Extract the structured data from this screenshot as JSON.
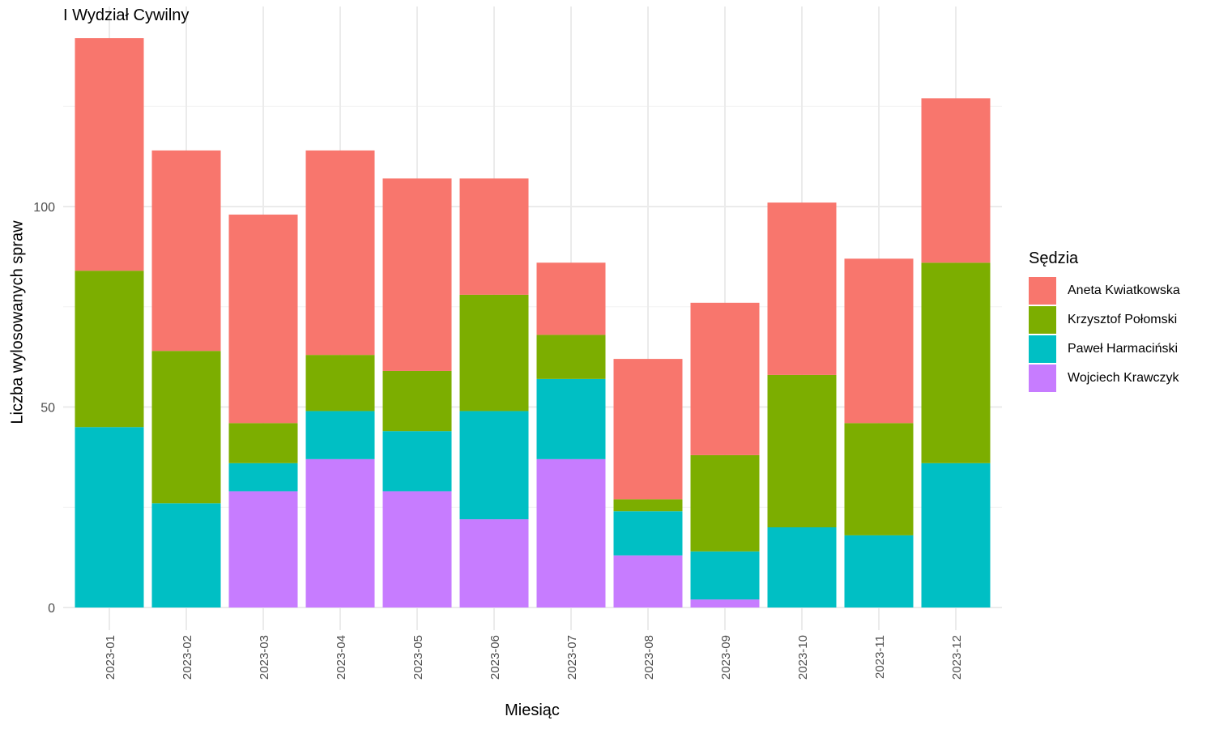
{
  "chart_data": {
    "type": "bar",
    "stacked": true,
    "title": "I Wydział Cywilny",
    "xlabel": "Miesiąc",
    "ylabel": "Liczba wylosowanych spraw",
    "legend_title": "Sędzia",
    "legend_position": "right",
    "grid": true,
    "ylim": [
      0,
      142
    ],
    "yticks": [
      0,
      50,
      100
    ],
    "categories": [
      "2023-01",
      "2023-02",
      "2023-03",
      "2023-04",
      "2023-05",
      "2023-06",
      "2023-07",
      "2023-08",
      "2023-09",
      "2023-10",
      "2023-11",
      "2023-12"
    ],
    "series": [
      {
        "name": "Wojciech Krawczyk",
        "color": "#C77CFF",
        "values": [
          0,
          0,
          29,
          37,
          29,
          22,
          37,
          13,
          2,
          0,
          0,
          0
        ]
      },
      {
        "name": "Paweł Harmaciński",
        "color": "#00BFC4",
        "values": [
          45,
          26,
          7,
          12,
          15,
          27,
          20,
          11,
          12,
          20,
          18,
          36
        ]
      },
      {
        "name": "Krzysztof Połomski",
        "color": "#7CAE00",
        "values": [
          39,
          38,
          10,
          14,
          15,
          29,
          11,
          3,
          24,
          38,
          28,
          50
        ]
      },
      {
        "name": "Aneta Kwiatkowska",
        "color": "#F8766D",
        "values": [
          58,
          50,
          52,
          51,
          48,
          29,
          18,
          35,
          38,
          43,
          41,
          41
        ]
      }
    ]
  }
}
